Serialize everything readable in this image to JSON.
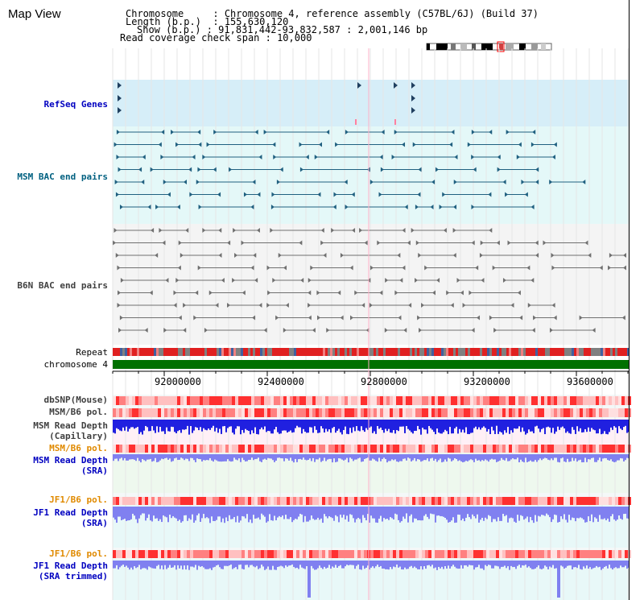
{
  "title": "Map View",
  "info": {
    "chromosome_label": "Chromosome",
    "chromosome_value": "Chromosome 4, reference assembly (C57BL/6J) (Build 37)",
    "length_label": "Length (b.p.)",
    "length_value": "155,630,120",
    "show_label": "Show (b.p.)",
    "show_value": "91,831,442-93,832,587 : 2,001,146 bp",
    "coverage_label": "Read coverage check span",
    "coverage_value": "10,000"
  },
  "tracks": {
    "refseq": "RefSeq Genes",
    "msm_bac": "MSM BAC end pairs",
    "b6n_bac": "B6N BAC end pairs",
    "repeat": "Repeat",
    "chromosome": "chromosome 4",
    "dbsnp": "dbSNP(Mouse)",
    "msm_b6_pol": "MSM/B6 pol.",
    "msm_depth_cap_1": "MSM Read Depth",
    "msm_depth_cap_2": "(Capillary)",
    "msm_b6_pol2": "MSM/B6 pol.",
    "msm_depth_sra_1": "MSM Read Depth",
    "msm_depth_sra_2": "(SRA)",
    "jf1_pol": "JF1/B6 pol.",
    "jf1_depth_1": "JF1 Read Depth",
    "jf1_depth_2": "(SRA)",
    "jf1_pol2": "JF1/B6 pol.",
    "jf1_trim_1": "JF1 Read Depth",
    "jf1_trim_2": "(SRA trimmed)"
  },
  "axis": {
    "ticks": [
      "92000000",
      "92400000",
      "92800000",
      "93200000",
      "93600000"
    ]
  },
  "colors": {
    "refseq_bg": "#d6eef8",
    "msm_bg": "#e4f8f8",
    "b6n_bg": "#f4f4f4",
    "chromosome_bar": "#007000",
    "depth_blue": "#2020e0",
    "depth_light": "#8080f0",
    "pol_red": "#ff4040",
    "pol_pink": "#ffb0b0"
  }
}
